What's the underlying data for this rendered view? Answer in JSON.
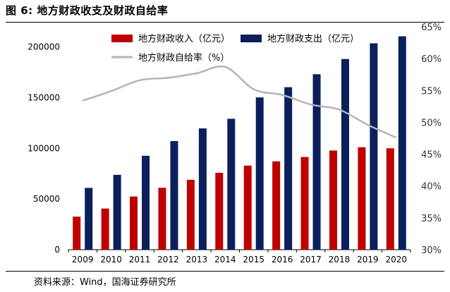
{
  "header": {
    "title": "图 6:  地方财政收支及财政自给率"
  },
  "footer": {
    "source": "资料来源：Wind，国海证券研究所"
  },
  "chart_data": {
    "type": "bar",
    "categories": [
      "2009",
      "2010",
      "2011",
      "2012",
      "2013",
      "2014",
      "2015",
      "2016",
      "2017",
      "2018",
      "2019",
      "2020"
    ],
    "series": [
      {
        "name": "地方财政收入（亿元）",
        "kind": "bar",
        "axis": "left",
        "color": "#c00000",
        "values": [
          32600,
          40600,
          52500,
          61100,
          69000,
          75900,
          83000,
          87200,
          91500,
          97900,
          101100,
          100100
        ]
      },
      {
        "name": "地方财政支出（亿元）",
        "kind": "bar",
        "axis": "left",
        "color": "#0b1f5c",
        "values": [
          61000,
          73900,
          92700,
          107200,
          119700,
          129200,
          150300,
          160400,
          173200,
          188200,
          203700,
          210600
        ]
      },
      {
        "name": "地方财政自给率（%）",
        "kind": "line",
        "axis": "right",
        "color": "#b4b4b4",
        "values": [
          53.4,
          54.9,
          56.6,
          57.0,
          57.7,
          58.7,
          55.2,
          54.3,
          52.8,
          52.0,
          49.6,
          47.6
        ]
      }
    ],
    "y_left": {
      "ylim": [
        0,
        220000
      ],
      "ticks": [
        0,
        50000,
        100000,
        150000,
        200000
      ],
      "tick_labels": [
        "0",
        "50000",
        "100000",
        "150000",
        "200000"
      ]
    },
    "y_right": {
      "ylim": [
        30,
        65
      ],
      "ticks": [
        30,
        35,
        40,
        45,
        50,
        55,
        60,
        65
      ],
      "tick_labels": [
        "30%",
        "35%",
        "40%",
        "45%",
        "50%",
        "55%",
        "60%",
        "65%"
      ]
    },
    "legend": {
      "placement": "top-left"
    },
    "grid": false
  }
}
